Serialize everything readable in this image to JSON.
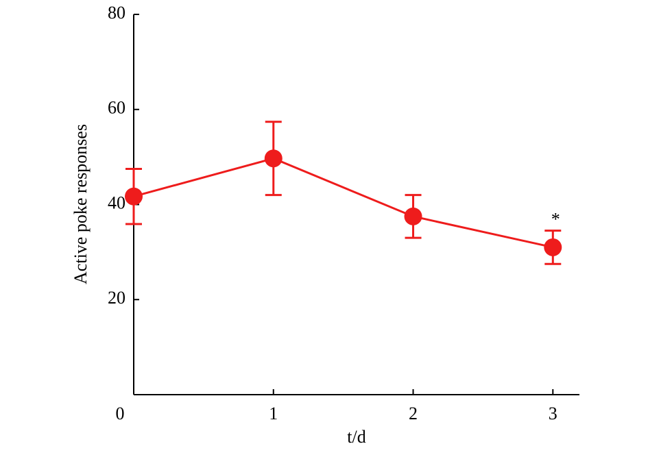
{
  "chart_data": {
    "type": "line",
    "ylabel": "Active poke responses",
    "xlabel": "t/d",
    "x": [
      0,
      1,
      2,
      3
    ],
    "series": [
      {
        "name": "Active poke responses",
        "color": "#ee1c1c",
        "values": [
          41.7,
          49.7,
          37.5,
          31.0
        ],
        "errors": [
          5.8,
          7.7,
          4.5,
          3.5
        ]
      }
    ],
    "annotations": [
      {
        "text": "*",
        "x": 3
      }
    ],
    "xlim": [
      0,
      3.19
    ],
    "ylim": [
      0,
      80
    ],
    "xticks": [
      0,
      1,
      2,
      3
    ],
    "yticks": [
      20,
      40,
      60,
      80
    ]
  }
}
